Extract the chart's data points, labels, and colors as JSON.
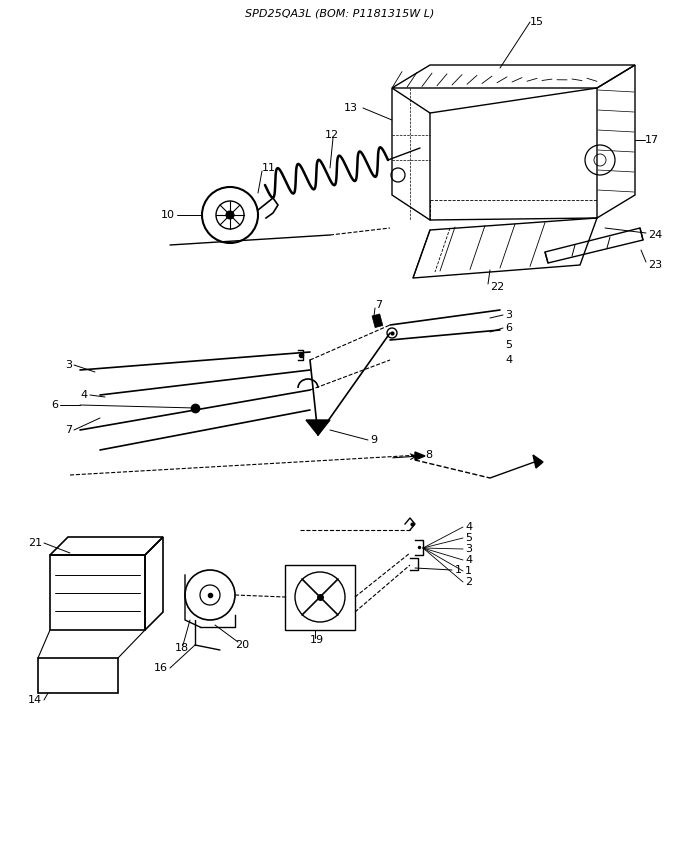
{
  "title": "SPD25QA3L (BOM: P1181315W L)",
  "bg_color": "#ffffff",
  "line_color": "#000000",
  "title_fontsize": 8,
  "label_fontsize": 8,
  "fig_width": 6.8,
  "fig_height": 8.56,
  "dpi": 100
}
